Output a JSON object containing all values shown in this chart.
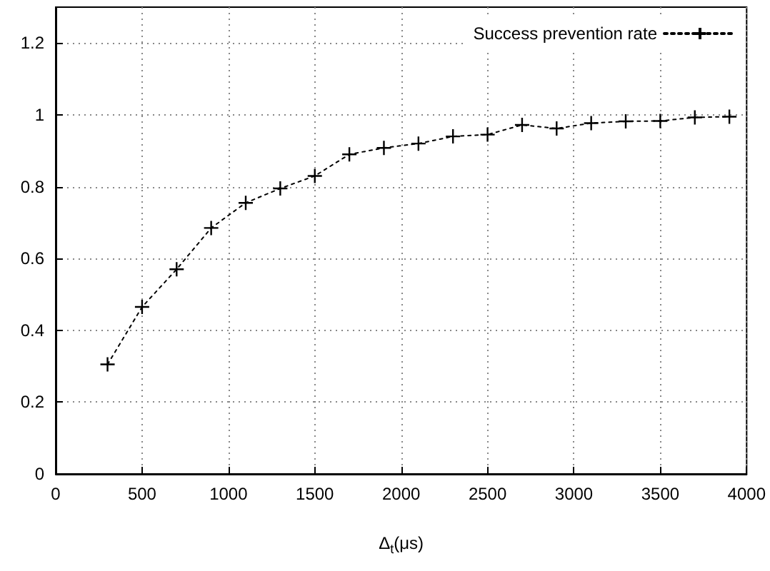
{
  "chart_data": {
    "type": "line",
    "xlabel": "Δ$_{t}$(μs)",
    "x": [
      300,
      500,
      700,
      900,
      1100,
      1300,
      1500,
      1700,
      1900,
      2100,
      2300,
      2500,
      2700,
      2900,
      3100,
      3300,
      3500,
      3700,
      3900
    ],
    "series": [
      {
        "name": "Success prevention rate",
        "color": "#000000",
        "values": [
          0.305,
          0.465,
          0.57,
          0.685,
          0.755,
          0.795,
          0.83,
          0.89,
          0.908,
          0.92,
          0.94,
          0.945,
          0.972,
          0.962,
          0.977,
          0.982,
          0.983,
          0.993,
          0.995
        ]
      }
    ],
    "xlim": [
      0,
      4000
    ],
    "xticks": [
      0,
      500,
      1000,
      1500,
      2000,
      2500,
      3000,
      3500,
      4000
    ],
    "ylim": [
      0,
      1.3
    ],
    "yticks": [
      0,
      0.2,
      0.4,
      0.6,
      0.8,
      1,
      1.2
    ],
    "grid": true,
    "legend": "top right",
    "marker": "cross",
    "line_style": "dotted"
  }
}
